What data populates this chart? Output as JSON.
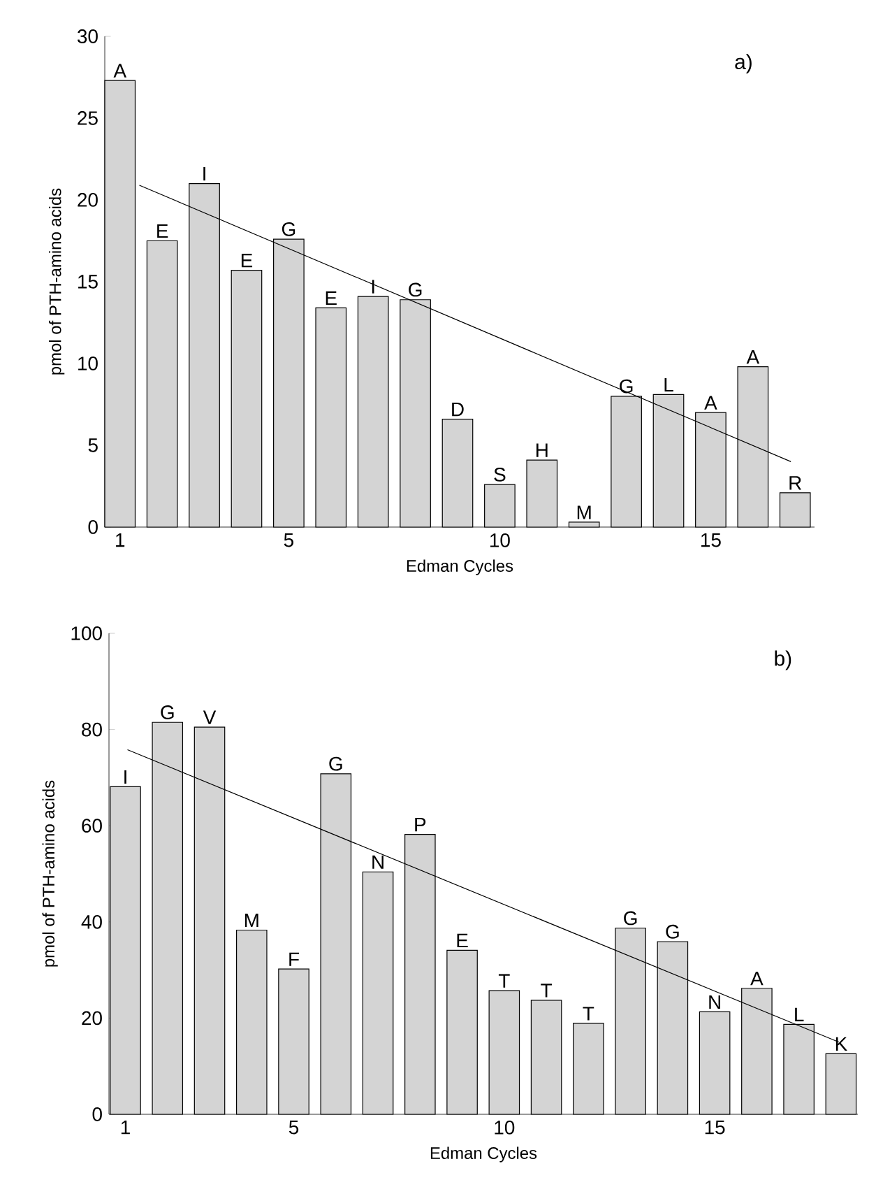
{
  "chart_data": [
    {
      "type": "bar",
      "title": "a)",
      "xlabel": "Edman Cycles",
      "ylabel": "pmol of PTH-amino acids",
      "x": [
        1,
        2,
        3,
        4,
        5,
        6,
        7,
        8,
        9,
        10,
        11,
        12,
        13,
        14,
        15,
        16,
        17
      ],
      "series": [
        {
          "color": "#d4d4d4",
          "values": [
            27.3,
            17.5,
            21.0,
            15.7,
            17.6,
            13.4,
            14.1,
            13.9,
            6.6,
            2.6,
            4.1,
            0.3,
            8.0,
            8.1,
            7.0,
            9.8,
            2.1
          ],
          "value_labels": [
            "A",
            "E",
            "I",
            "E",
            "G",
            "E",
            "I",
            "G",
            "D",
            "S",
            "H",
            "M",
            "G",
            "L",
            "A",
            "A",
            "R"
          ]
        },
        {
          "type": "line",
          "color": "#000000",
          "x": [
            1.46,
            16.9
          ],
          "values": [
            20.9,
            4.0
          ]
        }
      ],
      "xlim": [
        0.64,
        17.46
      ],
      "ylim": [
        0,
        30
      ],
      "xticks": [
        1,
        5,
        10,
        15
      ],
      "yticks": [
        0,
        5,
        10,
        15,
        20,
        25,
        30
      ]
    },
    {
      "type": "bar",
      "title": "b)",
      "xlabel": "Edman Cycles",
      "ylabel": "pmol of PTH-amino acids",
      "x": [
        1,
        2,
        3,
        4,
        5,
        6,
        7,
        8,
        9,
        10,
        11,
        12,
        13,
        14,
        15,
        16,
        17,
        18
      ],
      "series": [
        {
          "color": "#d4d4d4",
          "values": [
            68.1,
            81.5,
            80.5,
            38.3,
            30.2,
            70.8,
            50.4,
            58.2,
            34.1,
            25.7,
            23.7,
            18.9,
            38.7,
            35.9,
            21.3,
            26.2,
            18.7,
            12.6
          ],
          "value_labels": [
            "I",
            "G",
            "V",
            "M",
            "F",
            "G",
            "N",
            "P",
            "E",
            "T",
            "T",
            "T",
            "G",
            "G",
            "N",
            "A",
            "L",
            "K"
          ]
        },
        {
          "type": "line",
          "color": "#000000",
          "x": [
            1.05,
            17.95
          ],
          "values": [
            75.8,
            15.0
          ]
        }
      ],
      "xlim": [
        0.61,
        18.4
      ],
      "ylim": [
        0,
        100
      ],
      "xticks": [
        1,
        5,
        10,
        15
      ],
      "yticks": [
        0,
        20,
        40,
        60,
        80,
        100
      ]
    }
  ]
}
